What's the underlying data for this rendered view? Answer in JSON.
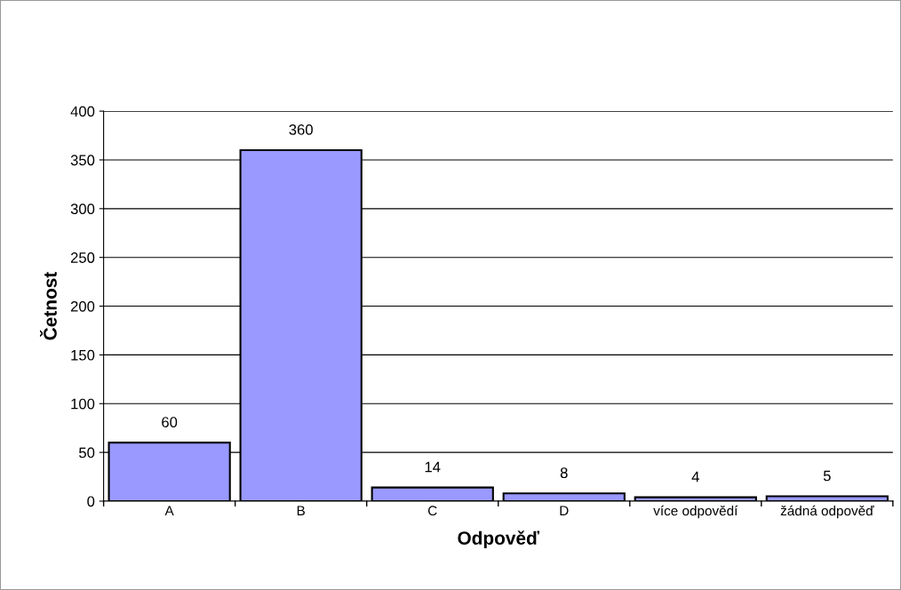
{
  "chart_data": {
    "type": "bar",
    "xlabel": "Odpověď",
    "ylabel": "Četnost",
    "categories": [
      "A",
      "B",
      "C",
      "D",
      "více odpovědí",
      "žádná odpověď"
    ],
    "values": [
      60,
      360,
      14,
      8,
      4,
      5
    ],
    "color": "#9999ff",
    "ylim": [
      0,
      400
    ],
    "yticks": [
      0,
      50,
      100,
      150,
      200,
      250,
      300,
      350,
      400
    ],
    "grid": "y",
    "data_labels": true,
    "legend": false
  }
}
